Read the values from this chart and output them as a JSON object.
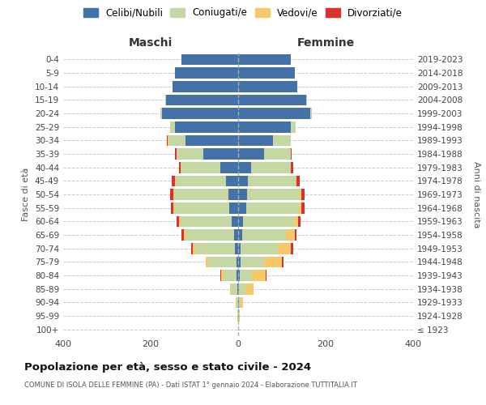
{
  "age_groups": [
    "100+",
    "95-99",
    "90-94",
    "85-89",
    "80-84",
    "75-79",
    "70-74",
    "65-69",
    "60-64",
    "55-59",
    "50-54",
    "45-49",
    "40-44",
    "35-39",
    "30-34",
    "25-29",
    "20-24",
    "15-19",
    "10-14",
    "5-9",
    "0-4"
  ],
  "birth_years": [
    "≤ 1923",
    "1924-1928",
    "1929-1933",
    "1934-1938",
    "1939-1943",
    "1944-1948",
    "1949-1953",
    "1954-1958",
    "1959-1963",
    "1964-1968",
    "1969-1973",
    "1974-1978",
    "1979-1983",
    "1984-1988",
    "1989-1993",
    "1994-1998",
    "1999-2003",
    "2004-2008",
    "2009-2013",
    "2014-2018",
    "2019-2023"
  ],
  "males": {
    "celibi": [
      0,
      0,
      0,
      2,
      3,
      4,
      8,
      10,
      14,
      20,
      22,
      28,
      40,
      80,
      120,
      145,
      175,
      165,
      150,
      145,
      130
    ],
    "coniugati": [
      0,
      1,
      4,
      14,
      30,
      65,
      90,
      110,
      118,
      125,
      125,
      115,
      90,
      60,
      40,
      10,
      2,
      2,
      0,
      0,
      0
    ],
    "vedovi": [
      0,
      0,
      1,
      3,
      6,
      5,
      5,
      5,
      4,
      3,
      2,
      2,
      1,
      1,
      1,
      1,
      0,
      0,
      0,
      0,
      0
    ],
    "divorziati": [
      0,
      0,
      0,
      0,
      1,
      1,
      5,
      4,
      5,
      6,
      7,
      7,
      5,
      3,
      2,
      0,
      0,
      0,
      0,
      0,
      0
    ]
  },
  "females": {
    "nubili": [
      0,
      0,
      1,
      2,
      3,
      5,
      6,
      10,
      12,
      18,
      20,
      22,
      30,
      60,
      80,
      120,
      165,
      155,
      135,
      130,
      120
    ],
    "coniugate": [
      0,
      2,
      5,
      14,
      28,
      55,
      85,
      100,
      115,
      120,
      120,
      110,
      90,
      60,
      40,
      12,
      4,
      2,
      0,
      0,
      0
    ],
    "vedove": [
      0,
      1,
      5,
      20,
      32,
      40,
      30,
      20,
      10,
      6,
      4,
      2,
      1,
      1,
      0,
      0,
      0,
      0,
      0,
      0,
      0
    ],
    "divorziate": [
      0,
      0,
      0,
      0,
      1,
      3,
      5,
      4,
      6,
      8,
      8,
      7,
      4,
      2,
      1,
      0,
      0,
      0,
      0,
      0,
      0
    ]
  },
  "colors": {
    "celibi": "#4472a8",
    "coniugati": "#c5d8a3",
    "vedovi": "#f5c96a",
    "divorziati": "#d93030"
  },
  "title": "Popolazione per età, sesso e stato civile - 2024",
  "subtitle": "COMUNE DI ISOLA DELLE FEMMINE (PA) - Dati ISTAT 1° gennaio 2024 - Elaborazione TUTTITALIA.IT",
  "xlabel_left": "Maschi",
  "xlabel_right": "Femmine",
  "ylabel_left": "Fasce di età",
  "ylabel_right": "Anni di nascita",
  "xlim": 400,
  "bg_color": "#ffffff",
  "grid_color": "#cccccc"
}
